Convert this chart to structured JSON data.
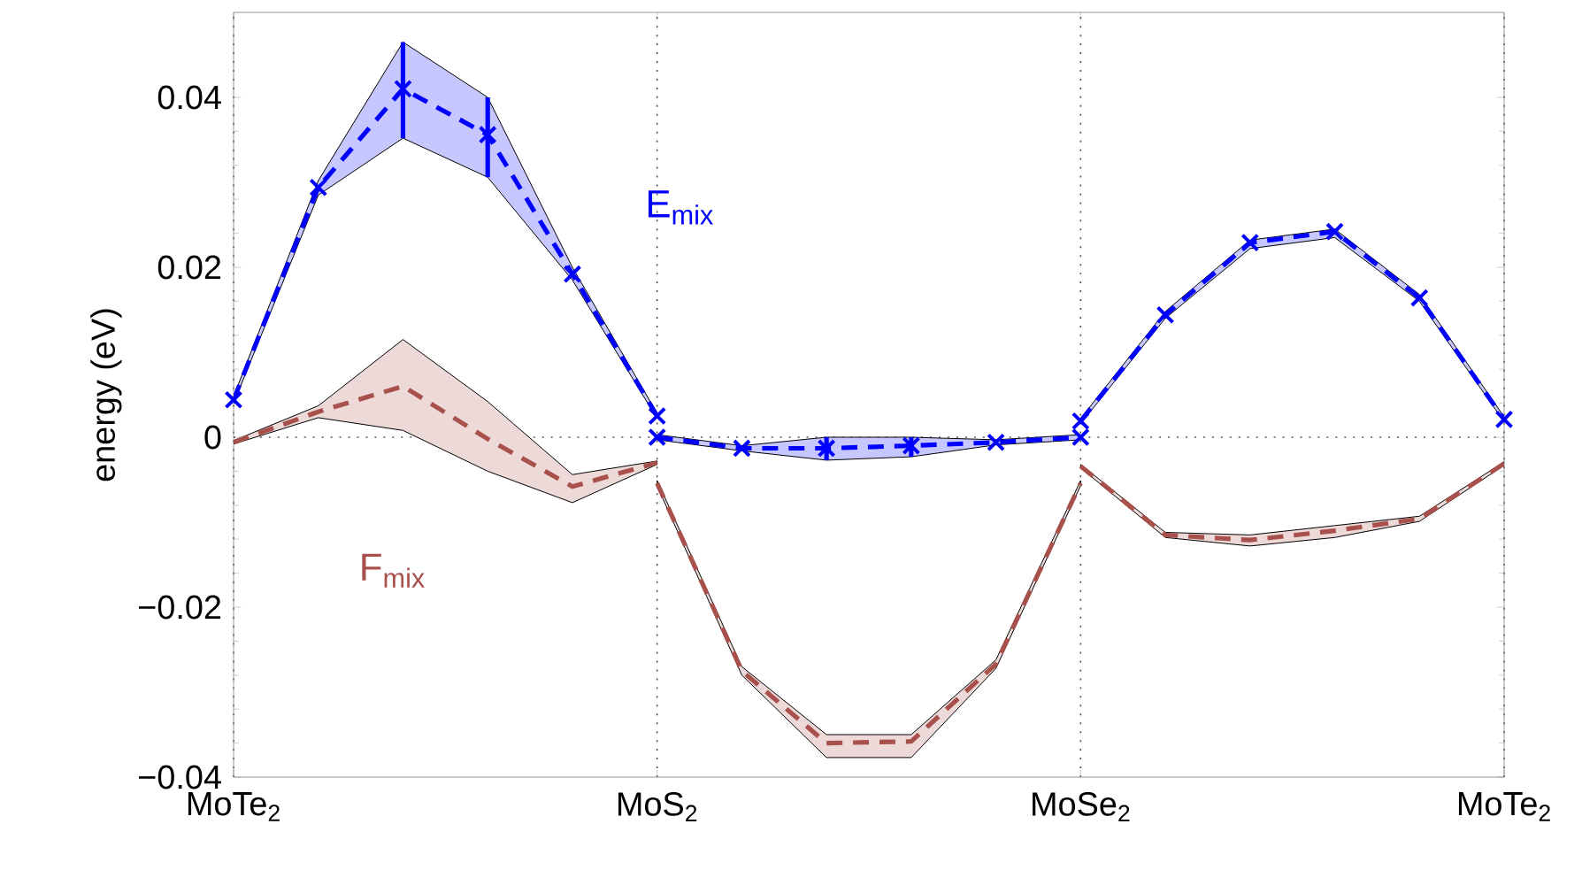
{
  "chart_data": {
    "type": "line",
    "ylabel": "energy (eV)",
    "categories": [
      "MoTe$_{2}$",
      null,
      null,
      null,
      null,
      "MoS$_{2}$",
      null,
      null,
      null,
      null,
      "MoSe$_{2}$",
      null,
      null,
      null,
      null,
      "MoTe$_{2}$"
    ],
    "ylim": [
      -0.04,
      0.05
    ],
    "yticks": [
      {
        "value": -0.04,
        "label": "−0.04"
      },
      {
        "value": -0.02,
        "label": "−0.02"
      },
      0,
      0.02,
      0.04
    ],
    "grid": "x",
    "line_style": "dashed",
    "ref_lines": [
      {
        "axis": "y",
        "value": 0,
        "line_style": "dotted",
        "color": "#555555"
      }
    ],
    "series": [
      {
        "name": "E$_{mix}$",
        "color": "#0000ff",
        "marker": "cross",
        "values": [
          0.0044,
          0.0294,
          0.041,
          0.0356,
          0.0192,
          0.0025,
          null,
          null,
          null,
          null,
          null,
          null,
          null,
          null,
          null,
          null
        ],
        "lower": [
          0.004,
          0.0285,
          0.0352,
          0.0306,
          0.0185,
          0.0022,
          null,
          null,
          null,
          null,
          null,
          null,
          null,
          null,
          null,
          null
        ],
        "upper": [
          0.0048,
          0.0302,
          0.0465,
          0.04,
          0.02,
          0.0028,
          null,
          null,
          null,
          null,
          null,
          null,
          null,
          null,
          null,
          null
        ],
        "errors": [
          null,
          null,
          [
            0.0352,
            0.0465
          ],
          [
            0.0306,
            0.04
          ],
          null,
          null,
          null,
          null,
          null,
          null,
          null,
          null,
          null,
          null,
          null,
          null
        ]
      },
      {
        "color": "#0000ff",
        "marker": "cross",
        "values": [
          null,
          null,
          null,
          null,
          null,
          0,
          -0.0013,
          -0.0013,
          -0.001,
          -0.0006,
          0,
          null,
          null,
          null,
          null,
          null
        ],
        "lower": [
          null,
          null,
          null,
          null,
          null,
          -0.0003,
          -0.0016,
          -0.0027,
          -0.0023,
          -0.0009,
          -0.0003,
          null,
          null,
          null,
          null,
          null
        ],
        "upper": [
          null,
          null,
          null,
          null,
          null,
          0.0003,
          -0.001,
          0,
          0,
          -0.0003,
          0.0003,
          null,
          null,
          null,
          null,
          null
        ],
        "errors": [
          null,
          null,
          null,
          null,
          null,
          null,
          null,
          [
            -0.0027,
            0
          ],
          [
            -0.0023,
            0
          ],
          null,
          null,
          null,
          null,
          null,
          null,
          null
        ]
      },
      {
        "color": "#0000ff",
        "marker": "cross",
        "values": [
          null,
          null,
          null,
          null,
          null,
          null,
          null,
          null,
          null,
          null,
          0.0019,
          0.0144,
          0.0229,
          0.0242,
          0.0164,
          0.0021
        ],
        "lower": [
          null,
          null,
          null,
          null,
          null,
          null,
          null,
          null,
          null,
          null,
          0.0016,
          0.014,
          0.0222,
          0.0235,
          0.016,
          0.0018
        ],
        "upper": [
          null,
          null,
          null,
          null,
          null,
          null,
          null,
          null,
          null,
          null,
          0.0022,
          0.0148,
          0.0232,
          0.0245,
          0.0168,
          0.0024
        ]
      },
      {
        "name": "F$_{mix}$",
        "color": "#a8504c",
        "marker": "none",
        "values": [
          -0.0006,
          0.003,
          0.006,
          -0.0002,
          -0.0058,
          -0.003,
          null,
          null,
          null,
          null,
          null,
          null,
          null,
          null,
          null,
          null
        ],
        "lower": [
          -0.0008,
          0.0023,
          0.0008,
          -0.004,
          -0.0077,
          -0.0032,
          null,
          null,
          null,
          null,
          null,
          null,
          null,
          null,
          null,
          null
        ],
        "upper": [
          -0.0004,
          0.0037,
          0.0115,
          0.0042,
          -0.0044,
          -0.0028,
          null,
          null,
          null,
          null,
          null,
          null,
          null,
          null,
          null,
          null
        ]
      },
      {
        "color": "#a8504c",
        "marker": "none",
        "values": [
          null,
          null,
          null,
          null,
          null,
          -0.0054,
          -0.0275,
          -0.036,
          -0.0358,
          -0.0267,
          -0.0054,
          null,
          null,
          null,
          null,
          null
        ],
        "lower": [
          null,
          null,
          null,
          null,
          null,
          -0.0057,
          -0.028,
          -0.0377,
          -0.0377,
          -0.0272,
          -0.0057,
          null,
          null,
          null,
          null,
          null
        ],
        "upper": [
          null,
          null,
          null,
          null,
          null,
          -0.0051,
          -0.027,
          -0.035,
          -0.035,
          -0.0262,
          -0.0051,
          null,
          null,
          null,
          null,
          null
        ]
      },
      {
        "color": "#a8504c",
        "marker": "none",
        "values": [
          null,
          null,
          null,
          null,
          null,
          null,
          null,
          null,
          null,
          null,
          -0.0034,
          -0.0115,
          -0.0121,
          -0.011,
          -0.0096,
          -0.0031
        ],
        "lower": [
          null,
          null,
          null,
          null,
          null,
          null,
          null,
          null,
          null,
          null,
          -0.0036,
          -0.0118,
          -0.0128,
          -0.0118,
          -0.0099,
          -0.0033
        ],
        "upper": [
          null,
          null,
          null,
          null,
          null,
          null,
          null,
          null,
          null,
          null,
          -0.0032,
          -0.0112,
          -0.0115,
          -0.0104,
          -0.0093,
          -0.0029
        ]
      }
    ]
  }
}
